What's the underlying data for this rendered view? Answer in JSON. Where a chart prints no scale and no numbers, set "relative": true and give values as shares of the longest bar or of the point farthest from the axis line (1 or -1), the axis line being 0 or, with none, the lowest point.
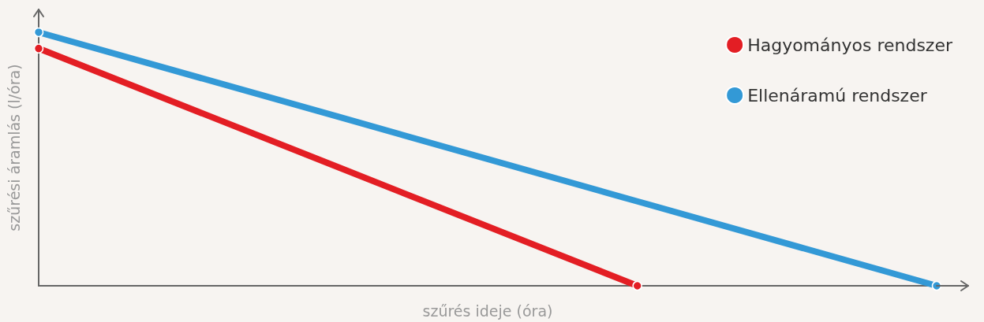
{
  "chart_data": {
    "type": "line",
    "relative": true,
    "xlabel": "szűrés ideje (óra)",
    "ylabel": "szűrési áramlás (l/óra)",
    "legend": "top right",
    "grid": false,
    "marker": "circle",
    "line_style": "solid",
    "categories": [
      null,
      null,
      null,
      null
    ],
    "series": [
      {
        "name": "Hagyományos rendszer",
        "color": "#e31e24",
        "values": [
          0.936,
          0.468,
          0,
          null
        ]
      },
      {
        "name": "Ellenáramú rendszer",
        "color": "#3399d6",
        "values": [
          1,
          0.667,
          0.333,
          0
        ]
      }
    ]
  }
}
